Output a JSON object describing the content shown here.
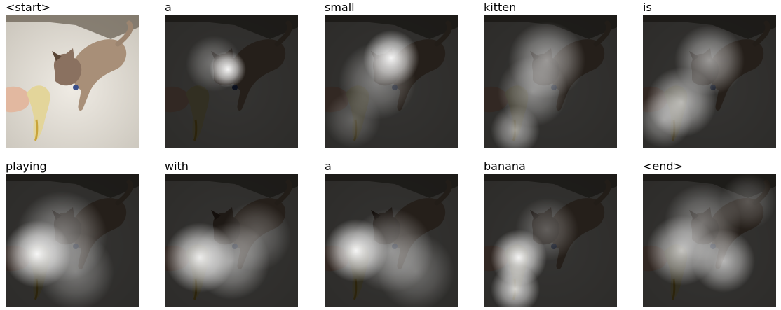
{
  "figure": {
    "row1": [
      "<start>",
      "a",
      "small",
      "kitten",
      "is"
    ],
    "row2": [
      "playing",
      "with",
      "a",
      "banana",
      "<end>"
    ]
  },
  "colors": {
    "background": "#ffffff",
    "carpet": "#d9d5cc",
    "cat": "#a88f78",
    "banana": "#d9c27a",
    "attention_overlay": "#000000",
    "attention_glow": "#ffffff"
  }
}
